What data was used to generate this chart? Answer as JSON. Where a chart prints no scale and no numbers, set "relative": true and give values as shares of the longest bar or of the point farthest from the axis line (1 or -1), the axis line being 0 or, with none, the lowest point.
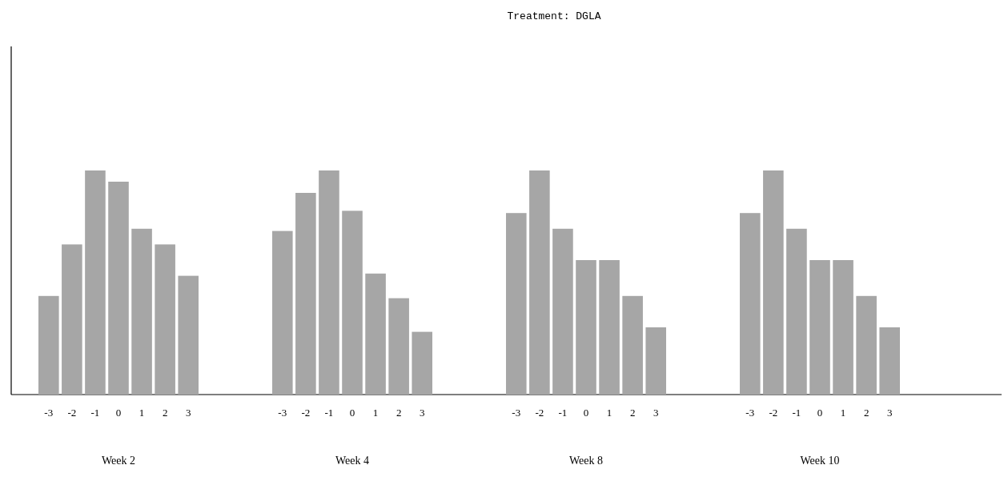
{
  "chart_data": [
    {
      "type": "bar",
      "xlabel": "Week 2",
      "categories": [
        "-3",
        "-2",
        "-1",
        "0",
        "1",
        "2",
        "3"
      ],
      "values": [
        0.44,
        0.67,
        1,
        0.95,
        0.74,
        0.67,
        0.53
      ],
      "color": "#a6a6a6",
      "relative": true
    },
    {
      "type": "bar",
      "xlabel": "Week 4",
      "categories": [
        "-3",
        "-2",
        "-1",
        "0",
        "1",
        "2",
        "3"
      ],
      "values": [
        0.73,
        0.9,
        1,
        0.82,
        0.54,
        0.43,
        0.28
      ],
      "color": "#a6a6a6",
      "relative": true
    },
    {
      "type": "bar",
      "title": "Treatment: DGLA",
      "xlabel": "Week 8",
      "categories": [
        "-3",
        "-2",
        "-1",
        "0",
        "1",
        "2",
        "3"
      ],
      "values": [
        0.81,
        1,
        0.74,
        0.6,
        0.6,
        0.44,
        0.3
      ],
      "color": "#a6a6a6",
      "relative": true
    },
    {
      "type": "bar",
      "xlabel": "Week 10",
      "categories": [
        "-3",
        "-2",
        "-1",
        "0",
        "1",
        "2",
        "3"
      ],
      "values": [
        0.81,
        1,
        0.74,
        0.6,
        0.6,
        0.44,
        0.3
      ],
      "color": "#a6a6a6",
      "relative": true
    }
  ]
}
